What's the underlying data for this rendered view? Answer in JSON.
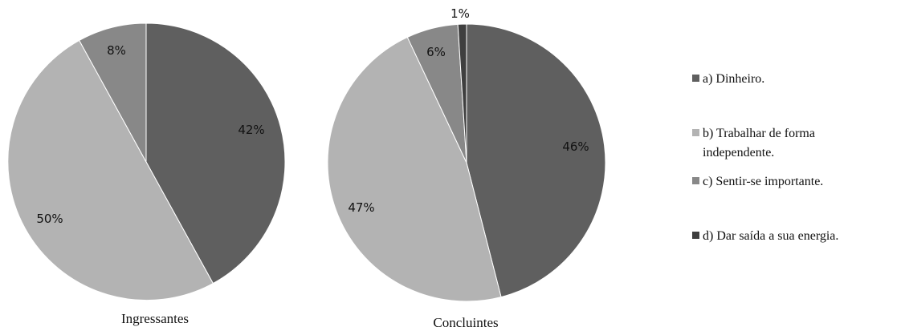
{
  "chart_data": [
    {
      "type": "pie",
      "title": "",
      "caption": "Ingressantes",
      "slices": [
        {
          "category": "a) Dinheiro.",
          "value": 42,
          "label": "42%"
        },
        {
          "category": "b) Trabalhar de forma independente.",
          "value": 50,
          "label": "50%"
        },
        {
          "category": "c) Sentir-se importante.",
          "value": 8,
          "label": "8%"
        }
      ]
    },
    {
      "type": "pie",
      "title": "",
      "caption": "Concluintes",
      "slices": [
        {
          "category": "a) Dinheiro.",
          "value": 46,
          "label": "46%"
        },
        {
          "category": "b) Trabalhar de forma independente.",
          "value": 47,
          "label": "47%"
        },
        {
          "category": "c) Sentir-se importante.",
          "value": 6,
          "label": "6%"
        },
        {
          "category": "d) Dar saída a sua energia.",
          "value": 1,
          "label": "1%"
        }
      ]
    }
  ],
  "legend": {
    "placement": "right",
    "items": [
      {
        "lines": [
          "a) Dinheiro."
        ],
        "color": "#5f5f5f"
      },
      {
        "lines": [
          "b) Trabalhar de forma",
          "independente."
        ],
        "color": "#b3b3b3"
      },
      {
        "lines": [
          "c) Sentir-se importante."
        ],
        "color": "#888888"
      },
      {
        "lines": [
          "d) Dar saída a sua energia."
        ],
        "color": "#3f3f3f"
      }
    ]
  },
  "colors": {
    "a) Dinheiro.": "#5f5f5f",
    "b) Trabalhar de forma independente.": "#b3b3b3",
    "c) Sentir-se importante.": "#888888",
    "d) Dar saída a sua energia.": "#3f3f3f"
  }
}
